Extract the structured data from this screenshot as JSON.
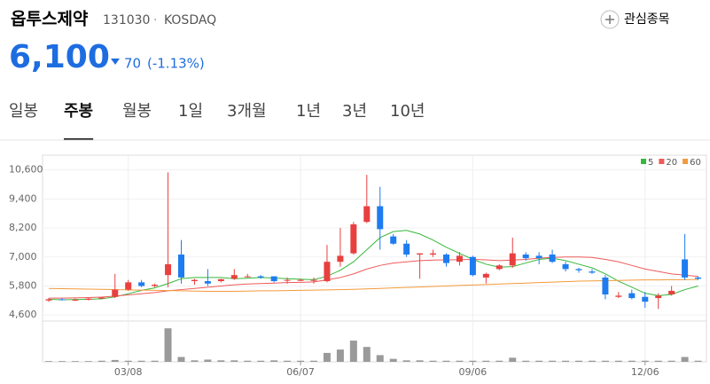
{
  "header": {
    "name": "옵투스제약",
    "code": "131030",
    "separator": "·",
    "market": "KOSDAQ",
    "watch_button": "관심종목",
    "price": "6,100",
    "change": "70",
    "change_pct": "(-1.13%)"
  },
  "tabs": [
    "일봉",
    "주봉",
    "월봉",
    "1일",
    "3개월",
    "1년",
    "3년",
    "10년"
  ],
  "active_tab": 1,
  "chart_data": {
    "type": "candlestick",
    "categories": [
      null,
      null,
      null,
      null,
      null,
      null,
      "03/08",
      null,
      null,
      null,
      null,
      null,
      null,
      null,
      null,
      null,
      null,
      null,
      null,
      "06/07",
      null,
      null,
      null,
      null,
      null,
      null,
      null,
      null,
      null,
      null,
      null,
      null,
      "09/06",
      null,
      null,
      null,
      null,
      null,
      null,
      null,
      null,
      null,
      null,
      null,
      null,
      "12/06",
      null,
      null,
      null,
      null
    ],
    "open": [
      5200,
      5250,
      5220,
      5230,
      5280,
      5350,
      5650,
      5950,
      5800,
      6250,
      7100,
      6000,
      6000,
      6000,
      6100,
      6200,
      6200,
      6200,
      6050,
      6050,
      6050,
      6000,
      6800,
      7150,
      8450,
      9100,
      7850,
      7550,
      7100,
      7100,
      7100,
      6800,
      7000,
      6150,
      6500,
      6650,
      7100,
      7050,
      7100,
      6700,
      6500,
      6400,
      6150,
      5350,
      5500,
      5350,
      5300,
      5450,
      6900,
      6150
    ],
    "high": [
      5300,
      5300,
      5280,
      5300,
      5350,
      6300,
      6050,
      6050,
      5900,
      10500,
      7700,
      6100,
      6500,
      6100,
      6500,
      6300,
      6250,
      6200,
      6150,
      6100,
      6150,
      7500,
      8200,
      8450,
      10400,
      9900,
      7950,
      7700,
      7150,
      7300,
      7150,
      7200,
      7050,
      6350,
      6700,
      7800,
      7200,
      7200,
      7300,
      6800,
      6550,
      6500,
      6250,
      5550,
      5650,
      5550,
      5500,
      5800,
      7950,
      6200
    ],
    "low": [
      5150,
      5200,
      5180,
      5200,
      5250,
      5300,
      5600,
      5750,
      5750,
      5750,
      5900,
      5850,
      5800,
      5950,
      6050,
      6150,
      6100,
      5950,
      5900,
      6000,
      5900,
      5950,
      6600,
      7100,
      8400,
      7300,
      7500,
      7000,
      6100,
      7000,
      6600,
      6650,
      6200,
      5900,
      6450,
      6550,
      6850,
      6700,
      6750,
      6400,
      6350,
      6300,
      5250,
      5300,
      5250,
      4900,
      4850,
      5400,
      6050,
      6050
    ],
    "close": [
      5250,
      5220,
      5230,
      5280,
      5320,
      5650,
      5950,
      5800,
      5850,
      6700,
      6150,
      6050,
      5900,
      6080,
      6250,
      6200,
      6150,
      6000,
      6050,
      6050,
      6050,
      6800,
      7050,
      8350,
      9100,
      8150,
      7550,
      7100,
      7150,
      7150,
      6750,
      7050,
      6250,
      6300,
      6650,
      7150,
      6950,
      6950,
      6800,
      6500,
      6450,
      6350,
      5450,
      5400,
      5300,
      5150,
      5400,
      5600,
      6150,
      6100
    ],
    "up_color": "#e8403f",
    "down_color": "#1e7cf0",
    "moving_averages": [
      {
        "name": "5",
        "color": "#36b83a",
        "values": [
          5250,
          5230,
          5240,
          5250,
          5270,
          5350,
          5480,
          5620,
          5720,
          5900,
          6100,
          6150,
          6150,
          6150,
          6100,
          6120,
          6150,
          6130,
          6100,
          6080,
          6060,
          6200,
          6450,
          6800,
          7300,
          7800,
          8050,
          8100,
          7950,
          7700,
          7400,
          7150,
          6900,
          6700,
          6580,
          6600,
          6750,
          6900,
          6950,
          6850,
          6700,
          6550,
          6300,
          6000,
          5750,
          5500,
          5400,
          5450,
          5650,
          5800
        ]
      },
      {
        "name": "20",
        "color": "#ef5a5a",
        "values": [
          5300,
          5300,
          5310,
          5320,
          5340,
          5380,
          5430,
          5480,
          5530,
          5600,
          5650,
          5700,
          5750,
          5800,
          5850,
          5880,
          5900,
          5920,
          5940,
          5950,
          5970,
          6050,
          6150,
          6300,
          6500,
          6650,
          6750,
          6800,
          6850,
          6870,
          6880,
          6890,
          6900,
          6880,
          6850,
          6870,
          6900,
          6950,
          6980,
          7000,
          7000,
          6980,
          6900,
          6800,
          6650,
          6500,
          6400,
          6300,
          6250,
          6200
        ]
      },
      {
        "name": "60",
        "color": "#f39a3c",
        "values": [
          5700,
          5690,
          5680,
          5670,
          5660,
          5650,
          5640,
          5630,
          5620,
          5610,
          5600,
          5590,
          5580,
          5580,
          5580,
          5590,
          5600,
          5600,
          5610,
          5620,
          5630,
          5640,
          5650,
          5660,
          5680,
          5700,
          5720,
          5740,
          5760,
          5780,
          5800,
          5820,
          5840,
          5860,
          5880,
          5900,
          5920,
          5940,
          5960,
          5980,
          6000,
          6010,
          6020,
          6030,
          6040,
          6050,
          6050,
          6060,
          6060,
          6070
        ]
      }
    ],
    "ylim": [
      4350,
      11100
    ],
    "yticks": [
      {
        "value": 10600,
        "label": "10,600"
      },
      {
        "value": 9400,
        "label": "9,400"
      },
      {
        "value": 8200,
        "label": "8,200"
      },
      {
        "value": 7000,
        "label": "7,000"
      },
      {
        "value": 5800,
        "label": "5,800"
      },
      {
        "value": 4600,
        "label": "4,600"
      }
    ],
    "grid": true,
    "volume": {
      "color": "#9a9a9a",
      "ylim": [
        0,
        100
      ],
      "values": [
        2,
        2,
        2,
        2,
        3,
        5,
        3,
        3,
        3,
        90,
        13,
        4,
        6,
        4,
        4,
        3,
        3,
        4,
        3,
        3,
        3,
        24,
        33,
        57,
        40,
        18,
        8,
        4,
        4,
        3,
        3,
        3,
        3,
        3,
        3,
        11,
        3,
        3,
        3,
        3,
        3,
        3,
        3,
        3,
        3,
        3,
        3,
        3,
        13,
        3
      ]
    }
  }
}
